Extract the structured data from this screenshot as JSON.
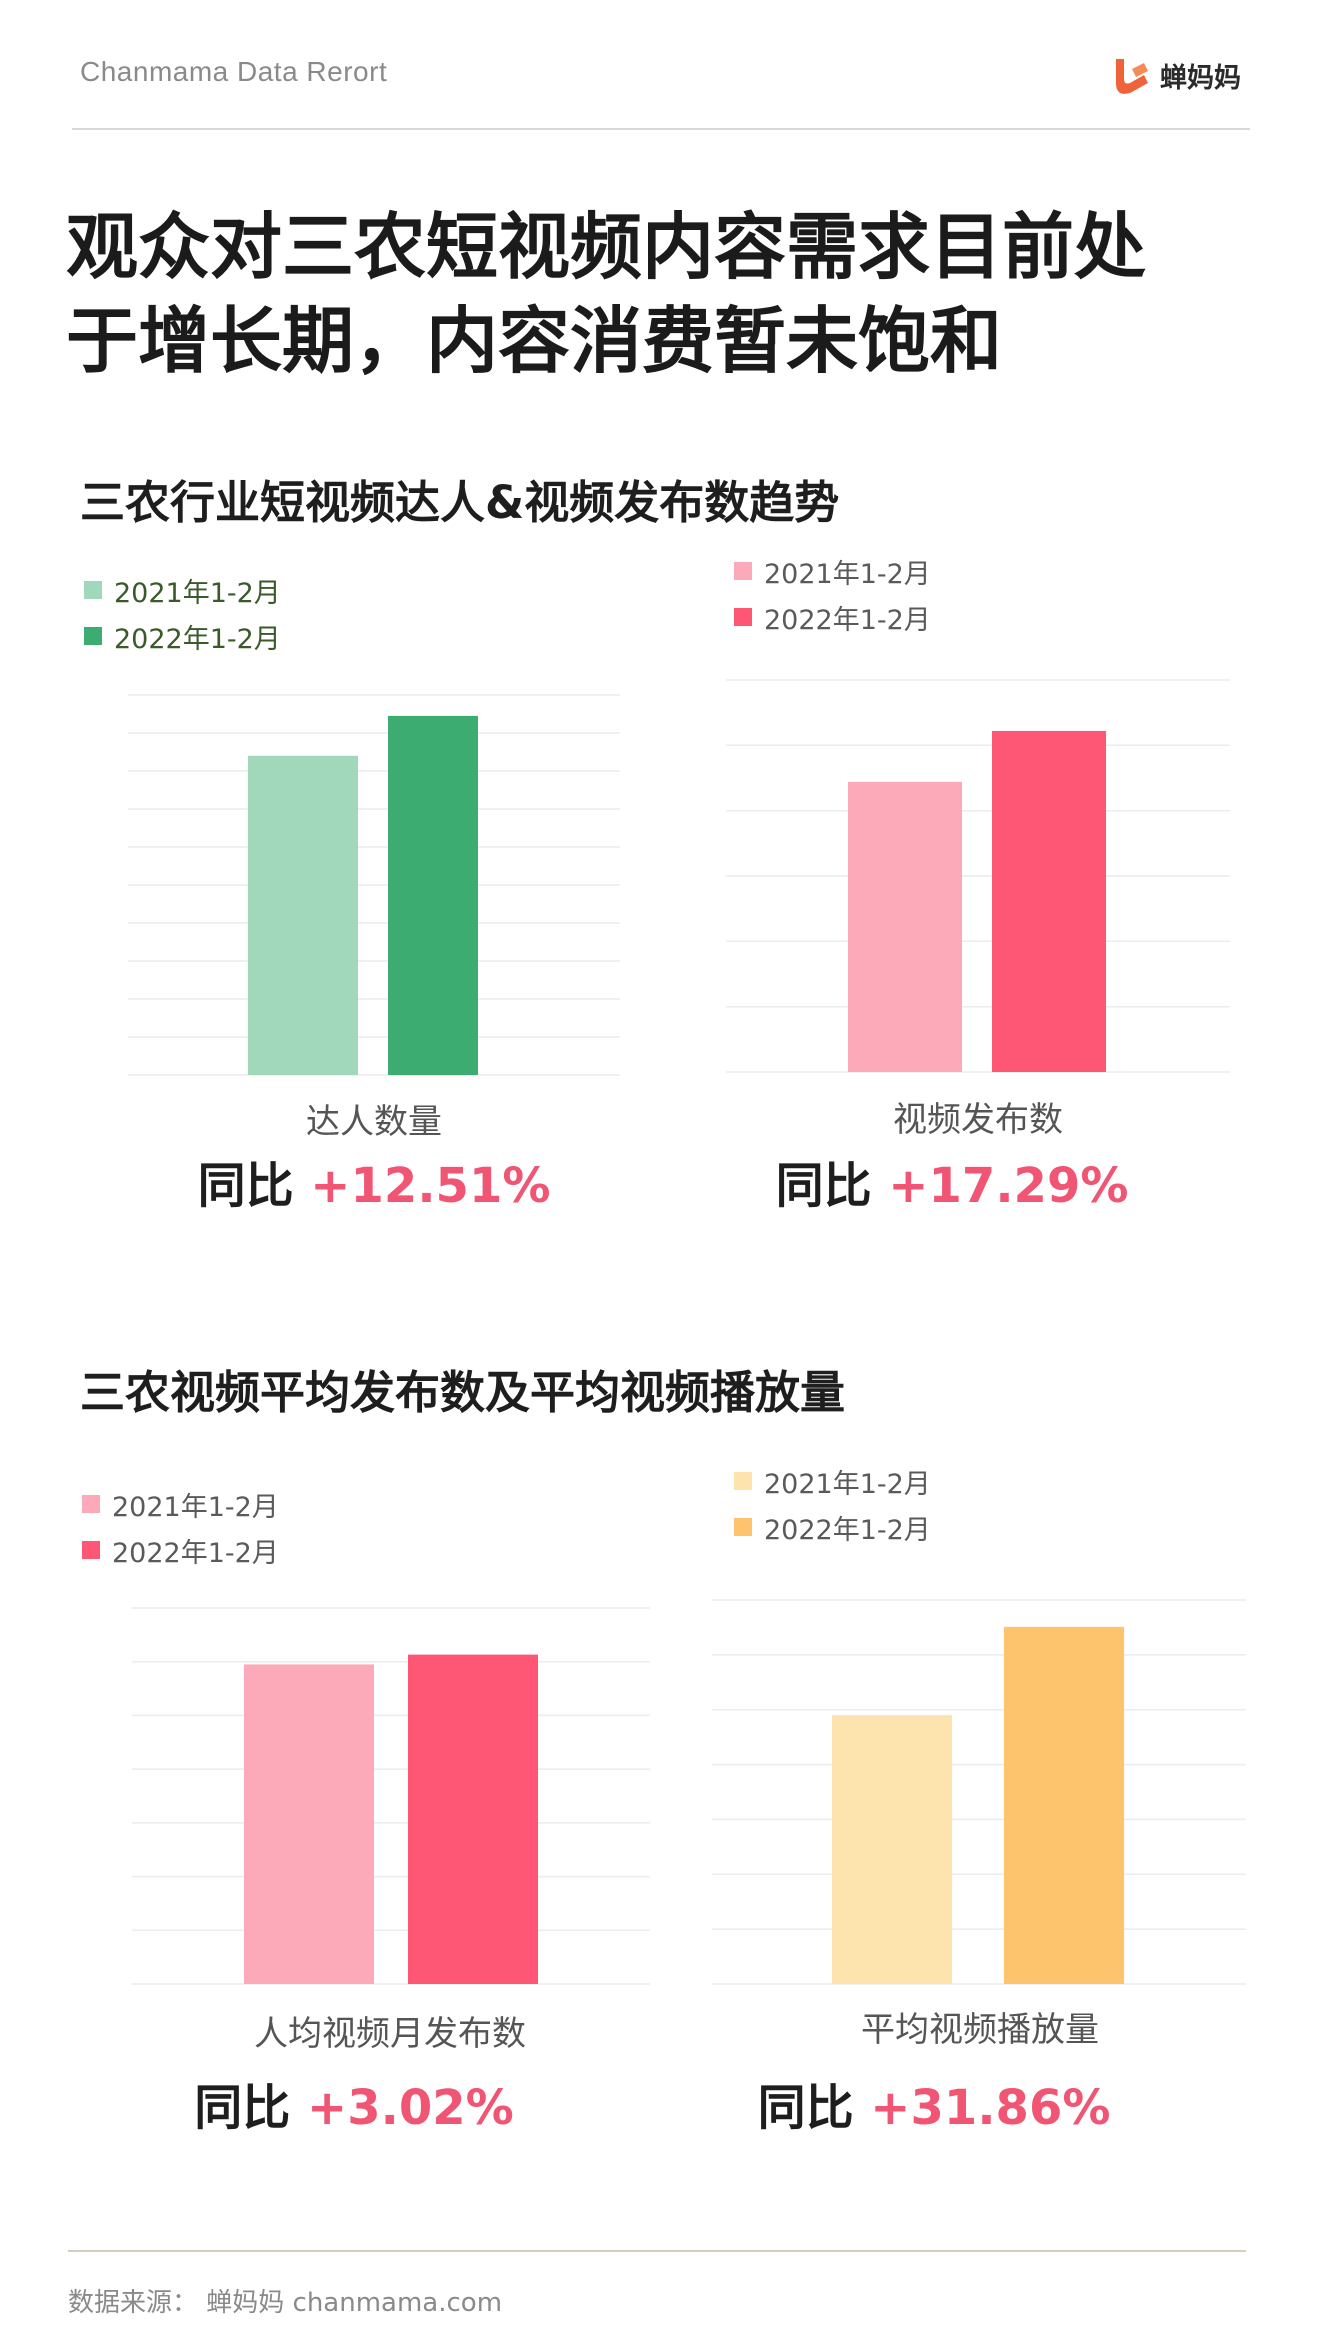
{
  "header": {
    "brand": "Chanmama Data Rerort",
    "logo_text": "蝉妈妈"
  },
  "headline": [
    "观众对三农短视频内容需求目前处",
    "于增长期，内容消费暂未饱和"
  ],
  "section1": {
    "title": "三农行业短视频达人&视频发布数趋势"
  },
  "section2": {
    "title": "三农视频平均发布数及平均视频播放量"
  },
  "yoy_prefix": "同比",
  "chart_data": [
    {
      "type": "bar",
      "categories": [
        "达人数量"
      ],
      "series": [
        {
          "name": "2021年1-2月",
          "values": [
            84
          ],
          "color": "#a1d8bb"
        },
        {
          "name": "2022年1-2月",
          "values": [
            94.5
          ],
          "color": "#3dac70"
        }
      ],
      "ylim": [
        0,
        100
      ],
      "gridlines": 11,
      "legend_color": "#3a5a2a",
      "yoy": "+12.51%"
    },
    {
      "type": "bar",
      "categories": [
        "视频发布数"
      ],
      "series": [
        {
          "name": "2021年1-2月",
          "values": [
            74
          ],
          "color": "#fca9b9"
        },
        {
          "name": "2022年1-2月",
          "values": [
            87
          ],
          "color": "#fe5775"
        }
      ],
      "ylim": [
        0,
        100
      ],
      "gridlines": 7,
      "legend_color": "#5a5a5a",
      "yoy": "+17.29%"
    },
    {
      "type": "bar",
      "categories": [
        "人均视频月发布数"
      ],
      "series": [
        {
          "name": "2021年1-2月",
          "values": [
            85
          ],
          "color": "#fca9b9"
        },
        {
          "name": "2022年1-2月",
          "values": [
            87.6
          ],
          "color": "#fe5775"
        }
      ],
      "ylim": [
        0,
        100
      ],
      "gridlines": 8,
      "legend_color": "#5a5a5a",
      "yoy": "+3.02%"
    },
    {
      "type": "bar",
      "categories": [
        "平均视频播放量"
      ],
      "series": [
        {
          "name": "2021年1-2月",
          "values": [
            70
          ],
          "color": "#fde3ae"
        },
        {
          "name": "2022年1-2月",
          "values": [
            93
          ],
          "color": "#fdc46d"
        }
      ],
      "ylim": [
        0,
        100
      ],
      "gridlines": 8,
      "legend_color": "#5a5a5a",
      "yoy": "+31.86%"
    }
  ],
  "footer": {
    "source": "数据来源：  蝉妈妈  chanmama.com"
  }
}
